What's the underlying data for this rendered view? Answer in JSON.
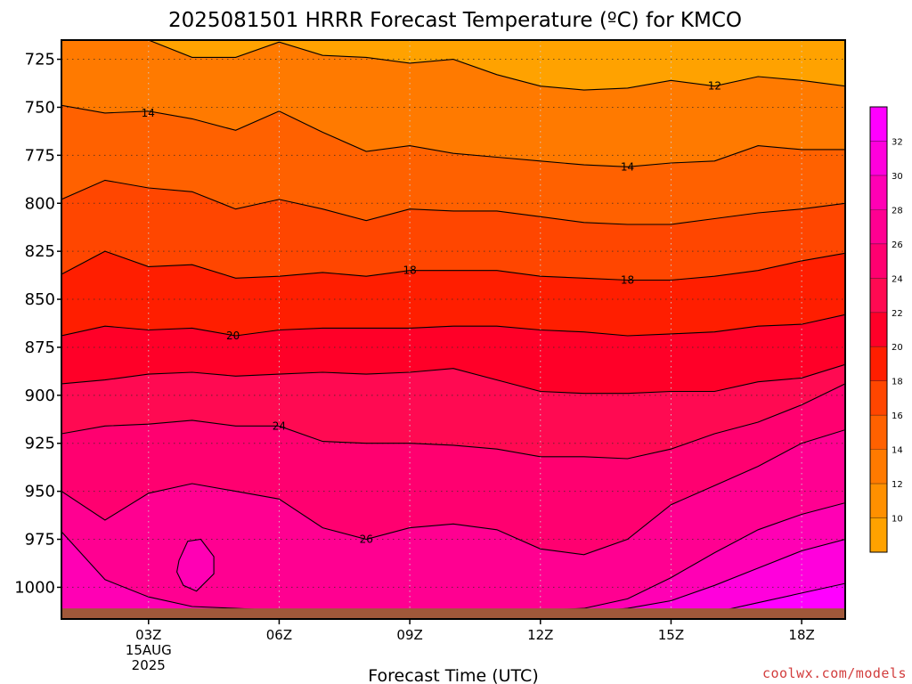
{
  "chart_data": {
    "type": "heatmap",
    "title": "2025081501 HRRR Forecast Temperature (ºC) for KMCO",
    "xlabel": "Forecast Time (UTC)",
    "ylabel": "",
    "x_ticks": [
      {
        "hour": 3,
        "label": "03Z",
        "sub": [
          "15AUG",
          "2025"
        ]
      },
      {
        "hour": 6,
        "label": "06Z",
        "sub": []
      },
      {
        "hour": 9,
        "label": "09Z",
        "sub": []
      },
      {
        "hour": 12,
        "label": "12Z",
        "sub": []
      },
      {
        "hour": 15,
        "label": "15Z",
        "sub": []
      },
      {
        "hour": 18,
        "label": "18Z",
        "sub": []
      }
    ],
    "xlim": [
      1,
      19
    ],
    "y_ticks": [
      725,
      750,
      775,
      800,
      825,
      850,
      875,
      900,
      925,
      950,
      975,
      1000
    ],
    "ylim": [
      1016.5,
      715
    ],
    "surface_pressure": 1011,
    "grid": true,
    "colorbar": {
      "ticks": [
        10,
        12,
        14,
        16,
        18,
        20,
        22,
        24,
        26,
        28,
        30,
        32
      ],
      "levels": [
        {
          "t": 8,
          "color": "#ffa200"
        },
        {
          "t": 10,
          "color": "#ff9000"
        },
        {
          "t": 12,
          "color": "#ff7a00"
        },
        {
          "t": 14,
          "color": "#ff6100"
        },
        {
          "t": 16,
          "color": "#ff4600"
        },
        {
          "t": 18,
          "color": "#ff1e00"
        },
        {
          "t": 20,
          "color": "#ff0028"
        },
        {
          "t": 22,
          "color": "#ff0a52"
        },
        {
          "t": 24,
          "color": "#ff0070"
        },
        {
          "t": 26,
          "color": "#ff0091"
        },
        {
          "t": 28,
          "color": "#ff00b4"
        },
        {
          "t": 30,
          "color": "#ff00dc"
        },
        {
          "t": 32,
          "color": "#ff00ff"
        }
      ]
    },
    "contours": [
      {
        "t": 12,
        "points": [
          [
            1,
            712
          ],
          [
            2,
            715
          ],
          [
            3,
            715
          ],
          [
            4,
            724
          ],
          [
            5,
            724
          ],
          [
            6,
            716
          ],
          [
            7,
            723
          ],
          [
            8,
            724
          ],
          [
            9,
            727
          ],
          [
            10,
            725
          ],
          [
            11,
            733
          ],
          [
            12,
            739
          ],
          [
            13,
            741
          ],
          [
            14,
            740
          ],
          [
            15,
            736
          ],
          [
            16,
            739
          ],
          [
            17,
            734
          ],
          [
            18,
            736
          ],
          [
            19,
            739
          ]
        ]
      },
      {
        "t": 14,
        "points": [
          [
            1,
            749
          ],
          [
            2,
            753
          ],
          [
            3,
            752
          ],
          [
            4,
            756
          ],
          [
            5,
            762
          ],
          [
            6,
            752
          ],
          [
            7,
            763
          ],
          [
            8,
            773
          ],
          [
            9,
            770
          ],
          [
            10,
            774
          ],
          [
            11,
            776
          ],
          [
            12,
            778
          ],
          [
            13,
            780
          ],
          [
            14,
            781
          ],
          [
            15,
            779
          ],
          [
            16,
            778
          ],
          [
            17,
            770
          ],
          [
            18,
            772
          ],
          [
            19,
            772
          ]
        ]
      },
      {
        "t": 16,
        "points": [
          [
            1,
            798
          ],
          [
            2,
            788
          ],
          [
            3,
            792
          ],
          [
            4,
            794
          ],
          [
            5,
            803
          ],
          [
            6,
            798
          ],
          [
            7,
            803
          ],
          [
            8,
            809
          ],
          [
            9,
            803
          ],
          [
            10,
            804
          ],
          [
            11,
            804
          ],
          [
            12,
            807
          ],
          [
            13,
            810
          ],
          [
            14,
            811
          ],
          [
            15,
            811
          ],
          [
            16,
            808
          ],
          [
            17,
            805
          ],
          [
            18,
            803
          ],
          [
            19,
            800
          ]
        ]
      },
      {
        "t": 18,
        "points": [
          [
            1,
            837
          ],
          [
            2,
            825
          ],
          [
            3,
            833
          ],
          [
            4,
            832
          ],
          [
            5,
            839
          ],
          [
            6,
            838
          ],
          [
            7,
            836
          ],
          [
            8,
            838
          ],
          [
            9,
            835
          ],
          [
            10,
            835
          ],
          [
            11,
            835
          ],
          [
            12,
            838
          ],
          [
            13,
            839
          ],
          [
            14,
            840
          ],
          [
            15,
            840
          ],
          [
            16,
            838
          ],
          [
            17,
            835
          ],
          [
            18,
            830
          ],
          [
            19,
            826
          ]
        ]
      },
      {
        "t": 20,
        "points": [
          [
            1,
            869
          ],
          [
            2,
            864
          ],
          [
            3,
            866
          ],
          [
            4,
            865
          ],
          [
            5,
            869
          ],
          [
            6,
            866
          ],
          [
            7,
            865
          ],
          [
            8,
            865
          ],
          [
            9,
            865
          ],
          [
            10,
            864
          ],
          [
            11,
            864
          ],
          [
            12,
            866
          ],
          [
            13,
            867
          ],
          [
            14,
            869
          ],
          [
            15,
            868
          ],
          [
            16,
            867
          ],
          [
            17,
            864
          ],
          [
            18,
            863
          ],
          [
            19,
            858
          ]
        ]
      },
      {
        "t": 22,
        "points": [
          [
            1,
            894
          ],
          [
            2,
            892
          ],
          [
            3,
            889
          ],
          [
            4,
            888
          ],
          [
            5,
            890
          ],
          [
            6,
            889
          ],
          [
            7,
            888
          ],
          [
            8,
            889
          ],
          [
            9,
            888
          ],
          [
            10,
            886
          ],
          [
            11,
            892
          ],
          [
            12,
            898
          ],
          [
            13,
            899
          ],
          [
            14,
            899
          ],
          [
            15,
            898
          ],
          [
            16,
            898
          ],
          [
            17,
            893
          ],
          [
            18,
            891
          ],
          [
            19,
            884
          ]
        ]
      },
      {
        "t": 24,
        "points": [
          [
            1,
            920
          ],
          [
            2,
            916
          ],
          [
            3,
            915
          ],
          [
            4,
            913
          ],
          [
            5,
            916
          ],
          [
            6,
            916
          ],
          [
            7,
            924
          ],
          [
            8,
            925
          ],
          [
            9,
            925
          ],
          [
            10,
            926
          ],
          [
            11,
            928
          ],
          [
            12,
            932
          ],
          [
            13,
            932
          ],
          [
            14,
            933
          ],
          [
            15,
            928
          ],
          [
            16,
            920
          ],
          [
            17,
            914
          ],
          [
            18,
            905
          ],
          [
            19,
            894
          ]
        ]
      },
      {
        "t": 26,
        "points": [
          [
            1,
            950
          ],
          [
            2,
            965
          ],
          [
            3,
            951
          ],
          [
            4,
            946
          ],
          [
            5,
            950
          ],
          [
            6,
            954
          ],
          [
            7,
            969
          ],
          [
            8,
            975
          ],
          [
            9,
            969
          ],
          [
            10,
            967
          ],
          [
            11,
            970
          ],
          [
            12,
            980
          ],
          [
            13,
            983
          ],
          [
            14,
            975
          ],
          [
            15,
            957
          ],
          [
            16,
            947
          ],
          [
            17,
            937
          ],
          [
            18,
            925
          ],
          [
            19,
            918
          ]
        ]
      },
      {
        "t": 28,
        "points": [
          [
            1,
            971
          ],
          [
            2,
            996
          ],
          [
            3,
            1005
          ],
          [
            4,
            1010
          ],
          [
            5,
            1011
          ],
          [
            6,
            1012
          ],
          [
            7,
            1012
          ],
          [
            8,
            1012
          ],
          [
            9,
            1012
          ],
          [
            10,
            1012
          ],
          [
            11,
            1012
          ],
          [
            12,
            1012
          ],
          [
            13,
            1011
          ],
          [
            14,
            1006
          ],
          [
            15,
            995
          ],
          [
            16,
            982
          ],
          [
            17,
            970
          ],
          [
            18,
            962
          ],
          [
            19,
            956
          ]
        ]
      },
      {
        "t": 30,
        "points": [
          [
            12,
            1014
          ],
          [
            13,
            1013
          ],
          [
            14,
            1011
          ],
          [
            15,
            1007
          ],
          [
            16,
            999
          ],
          [
            17,
            990
          ],
          [
            18,
            981
          ],
          [
            19,
            975
          ]
        ]
      },
      {
        "t": 32,
        "points": [
          [
            15,
            1014
          ],
          [
            16,
            1013
          ],
          [
            17,
            1008
          ],
          [
            18,
            1003
          ],
          [
            19,
            998
          ]
        ]
      }
    ],
    "island": {
      "t": 28,
      "points": [
        [
          3.7,
          986
        ],
        [
          3.9,
          976
        ],
        [
          4.2,
          975
        ],
        [
          4.5,
          984
        ],
        [
          4.5,
          993
        ],
        [
          4.1,
          1002
        ],
        [
          3.8,
          999
        ],
        [
          3.65,
          992
        ],
        [
          3.7,
          986
        ]
      ]
    },
    "contour_labels": [
      {
        "text": "14",
        "x": 2.99,
        "y": 753
      },
      {
        "text": "12",
        "x": 16.0,
        "y": 739
      },
      {
        "text": "14",
        "x": 14.0,
        "y": 781
      },
      {
        "text": "18",
        "x": 9.0,
        "y": 835
      },
      {
        "text": "18",
        "x": 14.0,
        "y": 840
      },
      {
        "text": "20",
        "x": 4.94,
        "y": 869
      },
      {
        "text": "24",
        "x": 6.0,
        "y": 916
      },
      {
        "text": "26",
        "x": 8.0,
        "y": 975
      }
    ]
  },
  "credit": "coolwx.com/models"
}
